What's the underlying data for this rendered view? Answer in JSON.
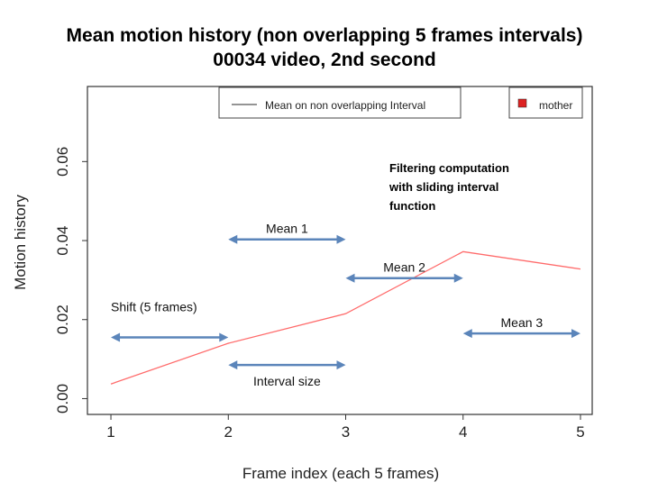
{
  "chart_data": {
    "type": "line",
    "title": "Mean motion history (non overlapping 5 frames intervals)",
    "subtitle": "00034 video, 2nd second",
    "xlabel": "Frame index (each 5 frames)",
    "ylabel": "Motion history",
    "xlim": [
      0.8,
      5.1
    ],
    "ylim": [
      -0.004,
      0.079
    ],
    "x_ticks": [
      1,
      2,
      3,
      4,
      5
    ],
    "y_ticks": [
      0.0,
      0.02,
      0.04,
      0.06
    ],
    "y_tick_labels": [
      "0.00",
      "0.02",
      "0.04",
      "0.06"
    ],
    "grid": false,
    "series": [
      {
        "name": "mother",
        "color": "#ff6b6b",
        "x": [
          1,
          2,
          3,
          4,
          5
        ],
        "y": [
          0.0037,
          0.014,
          0.0215,
          0.0372,
          0.0328
        ]
      }
    ],
    "legend_line": {
      "label": "Mean on non overlapping Interval",
      "color": "#555555",
      "placement": "top-center"
    },
    "legend_box": {
      "label": "mother",
      "color": "#dd2222",
      "placement": "top-right"
    },
    "annotations": {
      "filtering": [
        "Filtering computation",
        "with sliding interval",
        "function"
      ],
      "arrow_color": "#5b85ba",
      "arrows": [
        {
          "label": "Shift (5 frames)",
          "x": [
            1.0,
            2.0
          ],
          "y": 0.0155
        },
        {
          "label": "Interval size",
          "x": [
            2.0,
            3.0
          ],
          "y": 0.0085
        },
        {
          "label": "Mean 1",
          "x": [
            2.0,
            3.0
          ],
          "y": 0.0403
        },
        {
          "label": "Mean 2",
          "x": [
            3.0,
            4.0
          ],
          "y": 0.0305
        },
        {
          "label": "Mean 3",
          "x": [
            4.0,
            5.0
          ],
          "y": 0.0165
        }
      ]
    }
  }
}
